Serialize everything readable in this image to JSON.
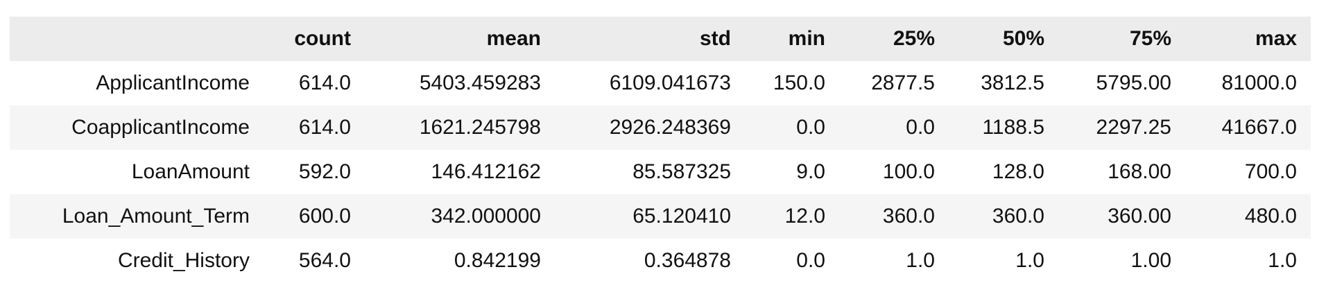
{
  "table": {
    "columns": [
      "",
      "count",
      "mean",
      "std",
      "min",
      "25%",
      "50%",
      "75%",
      "max"
    ],
    "rows": [
      {
        "label": "ApplicantIncome",
        "values": [
          "614.0",
          "5403.459283",
          "6109.041673",
          "150.0",
          "2877.5",
          "3812.5",
          "5795.00",
          "81000.0"
        ]
      },
      {
        "label": "CoapplicantIncome",
        "values": [
          "614.0",
          "1621.245798",
          "2926.248369",
          "0.0",
          "0.0",
          "1188.5",
          "2297.25",
          "41667.0"
        ]
      },
      {
        "label": "LoanAmount",
        "values": [
          "592.0",
          "146.412162",
          "85.587325",
          "9.0",
          "100.0",
          "128.0",
          "168.00",
          "700.0"
        ]
      },
      {
        "label": "Loan_Amount_Term",
        "values": [
          "600.0",
          "342.000000",
          "65.120410",
          "12.0",
          "360.0",
          "360.0",
          "360.00",
          "480.0"
        ]
      },
      {
        "label": "Credit_History",
        "values": [
          "564.0",
          "0.842199",
          "0.364878",
          "0.0",
          "1.0",
          "1.0",
          "1.00",
          "1.0"
        ]
      }
    ]
  }
}
